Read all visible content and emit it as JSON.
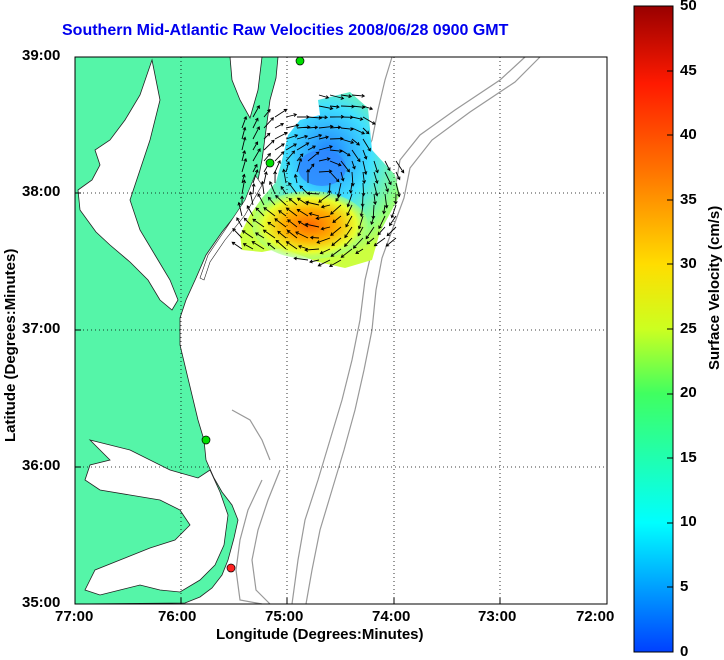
{
  "map": {
    "title": "Southern Mid-Atlantic Raw Velocities 2008/06/28 0900 GMT",
    "xlabel": "Longitude (Degrees:Minutes)",
    "ylabel": "Latitude (Degrees:Minutes)",
    "x_ticks": [
      "77:00",
      "76:00",
      "75:00",
      "74:00",
      "73:00",
      "72:00"
    ],
    "y_ticks": [
      "39:00",
      "38:00",
      "37:00",
      "36:00",
      "35:00"
    ],
    "land_color": "#55f5a8",
    "grid": "dotted"
  },
  "colorbar": {
    "label": "Surface Velocity (cm/s)",
    "ticks": [
      "0",
      "5",
      "10",
      "15",
      "20",
      "25",
      "30",
      "35",
      "40",
      "45",
      "50"
    ],
    "range": [
      0,
      50
    ],
    "colormap": "jet"
  },
  "stations": [
    {
      "color": "#00dd00"
    },
    {
      "color": "#00dd00"
    },
    {
      "color": "#00dd00"
    },
    {
      "color": "#ff2020"
    }
  ]
}
